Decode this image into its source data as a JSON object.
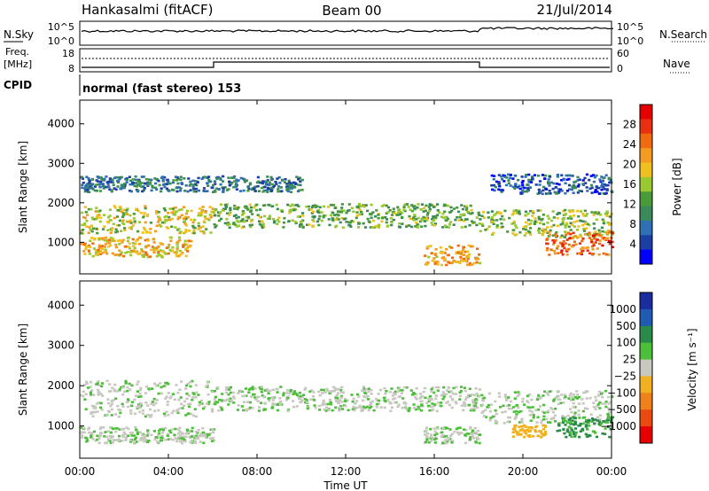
{
  "header": {
    "station": "Hankasalmi (fitACF)",
    "beam": "Beam 00",
    "date": "21/Jul/2014"
  },
  "noise_panel": {
    "left_label": "N.Sky",
    "right_label": "N.Search",
    "ticks_left": [
      "10^5",
      "10^0"
    ],
    "ticks_right": [
      "10^5",
      "10^0"
    ]
  },
  "freq_panel": {
    "left_label_1": "Freq.",
    "left_label_2": "[MHz]",
    "right_label": "Nave",
    "ticks_left": [
      "18",
      "8"
    ],
    "ticks_right": [
      "60",
      "0"
    ]
  },
  "cpid": {
    "label": "CPID",
    "text": "normal (fast stereo) 153"
  },
  "colors": {
    "power": [
      "#0000ff",
      "#1c3fa3",
      "#2f6fb3",
      "#3a8a5a",
      "#4a9a3a",
      "#9ac830",
      "#f0c020",
      "#f39a20",
      "#f06a10",
      "#e83010",
      "#e60000"
    ],
    "velocity": [
      "#1a2d9e",
      "#1f5bb0",
      "#2a8a4a",
      "#4cbf3a",
      "#c8c8c0",
      "#f0b020",
      "#f0801a",
      "#ea4a10",
      "#e60000"
    ]
  },
  "chart_data": [
    {
      "type": "heatmap",
      "name": "Power",
      "xlabel": "",
      "ylabel": "Slant Range [km]",
      "yticks": [
        "1000",
        "2000",
        "3000",
        "4000"
      ],
      "ylim": [
        200,
        4600
      ],
      "colorbar": {
        "label": "Power [dB]",
        "ticks": [
          "4",
          "8",
          "12",
          "16",
          "20",
          "24",
          "28"
        ],
        "range": [
          0,
          30
        ]
      },
      "bands": [
        {
          "t0": 0.0,
          "t1": 6.0,
          "r_center": 1600,
          "r_width": 700,
          "value": 18
        },
        {
          "t0": 6.0,
          "t1": 18.0,
          "r_center": 1700,
          "r_width": 600,
          "value": 14
        },
        {
          "t0": 18.0,
          "t1": 24.0,
          "r_center": 1500,
          "r_width": 700,
          "value": 16
        },
        {
          "t0": 0.0,
          "t1": 5.0,
          "r_center": 900,
          "r_width": 500,
          "value": 20
        },
        {
          "t0": 15.5,
          "t1": 18.0,
          "r_center": 700,
          "r_width": 500,
          "value": 22
        },
        {
          "t0": 21.0,
          "t1": 24.0,
          "r_center": 1000,
          "r_width": 600,
          "value": 26
        },
        {
          "t0": 0.0,
          "t1": 10.0,
          "r_center": 2500,
          "r_width": 400,
          "value": 8
        },
        {
          "t0": 18.5,
          "t1": 24.0,
          "r_center": 2500,
          "r_width": 500,
          "value": 6
        }
      ]
    },
    {
      "type": "heatmap",
      "name": "Velocity",
      "xlabel": "Time UT",
      "ylabel": "Slant Range [km]",
      "xticks": [
        "00:00",
        "04:00",
        "08:00",
        "12:00",
        "16:00",
        "20:00",
        "00:00"
      ],
      "yticks": [
        "1000",
        "2000",
        "3000",
        "4000"
      ],
      "ylim": [
        200,
        4600
      ],
      "colorbar": {
        "label": "Velocity [m s⁻¹]",
        "ticks": [
          "1000",
          "500",
          "100",
          "25",
          "−25",
          "−100",
          "−500",
          "−1000"
        ],
        "range": [
          -1000,
          1000
        ]
      },
      "bands": [
        {
          "t0": 0.0,
          "t1": 6.0,
          "r_center": 1700,
          "r_width": 900,
          "value": 0
        },
        {
          "t0": 6.0,
          "t1": 18.0,
          "r_center": 1700,
          "r_width": 600,
          "value": 0
        },
        {
          "t0": 18.0,
          "t1": 24.0,
          "r_center": 1500,
          "r_width": 800,
          "value": 0
        },
        {
          "t0": 0.0,
          "t1": 6.0,
          "r_center": 800,
          "r_width": 400,
          "value": 0
        },
        {
          "t0": 15.5,
          "t1": 18.0,
          "r_center": 800,
          "r_width": 400,
          "value": 0
        },
        {
          "t0": 21.5,
          "t1": 24.0,
          "r_center": 1000,
          "r_width": 500,
          "value": 300
        },
        {
          "t0": 19.5,
          "t1": 21.0,
          "r_center": 900,
          "r_width": 300,
          "value": -400
        }
      ]
    }
  ]
}
